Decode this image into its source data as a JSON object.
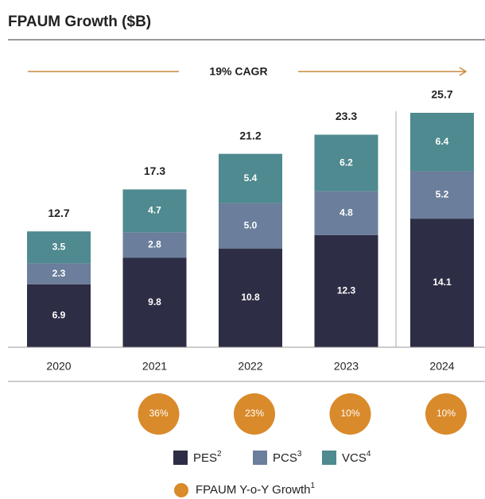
{
  "chart_data": {
    "type": "bar",
    "stacked": true,
    "title": "FPAUM Growth ($B)",
    "annotation": "19% CAGR",
    "categories": [
      "2020",
      "2021",
      "2022",
      "2023",
      "2024"
    ],
    "series": [
      {
        "name": "PES",
        "note": "2",
        "color": "#2d2d45",
        "values": [
          6.9,
          9.8,
          10.8,
          12.3,
          14.1
        ]
      },
      {
        "name": "PCS",
        "note": "3",
        "color": "#6b7e9b",
        "values": [
          2.3,
          2.8,
          5.0,
          4.8,
          5.2
        ],
        "value_labels": [
          "2.3",
          "2.8",
          "5.0",
          "4.8",
          "5.2"
        ]
      },
      {
        "name": "VCS",
        "note": "4",
        "color": "#4e8a8f",
        "values": [
          3.5,
          4.7,
          5.4,
          6.2,
          6.4
        ]
      }
    ],
    "totals": [
      12.7,
      17.3,
      21.2,
      23.3,
      25.7
    ],
    "growth": {
      "name": "FPAUM Y-o-Y Growth",
      "note": "1",
      "color": "#d98a2b",
      "values": [
        null,
        36,
        23,
        10,
        10
      ],
      "value_labels": [
        null,
        "36%",
        "23%",
        "10%",
        "10%"
      ]
    }
  }
}
